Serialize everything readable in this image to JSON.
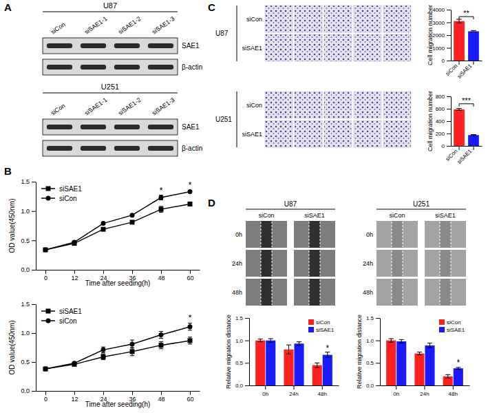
{
  "figure": {
    "panel_labels": [
      "A",
      "B",
      "C",
      "D"
    ],
    "blots": [
      {
        "cell_line": "U87",
        "lanes": [
          "siCon",
          "siSAE1-1",
          "siSAE1-2",
          "siSAE1-3"
        ],
        "bands": [
          "SAE1",
          "β-actin"
        ]
      },
      {
        "cell_line": "U251",
        "lanes": [
          "siCon",
          "siSAE1-1",
          "siSAE1-2",
          "siSAE1-3"
        ],
        "bands": [
          "SAE1",
          "β-actin"
        ]
      }
    ],
    "transwell": [
      {
        "cell_line": "U87",
        "rows": [
          "siCon",
          "siSAE1"
        ]
      },
      {
        "cell_line": "U251",
        "rows": [
          "siCon",
          "siSAE1"
        ]
      }
    ],
    "wound": [
      {
        "cell_line": "U87",
        "columns": [
          "siCon",
          "siSAE1"
        ],
        "rows": [
          "0h",
          "24h",
          "48h"
        ]
      },
      {
        "cell_line": "U251",
        "columns": [
          "siCon",
          "siSAE1"
        ],
        "rows": [
          "0h",
          "24h",
          "48h"
        ]
      }
    ]
  },
  "chart_data": [
    {
      "type": "line",
      "x": [
        0,
        12,
        24,
        36,
        48,
        60
      ],
      "xlim": [
        -4,
        64
      ],
      "xticks": [
        0,
        12,
        24,
        36,
        48,
        60
      ],
      "ylim": [
        0,
        1.5
      ],
      "yticks": [
        {
          "value": 0,
          "label": "0.0"
        },
        0.5,
        {
          "value": 1,
          "label": "1.0"
        },
        1.5
      ],
      "xlabel": "Time after seeding(h)",
      "ylabel": "OD value(450nm)",
      "legend": "top-left",
      "series": [
        {
          "name": "siSAE1",
          "color": "#000000",
          "marker": "square",
          "values": [
            0.34,
            0.45,
            0.69,
            0.81,
            1.03,
            1.12
          ],
          "errors": [
            0.01,
            0.02,
            0.02,
            0.02,
            0.05,
            0.02
          ]
        },
        {
          "name": "siCon",
          "color": "#000000",
          "marker": "circle",
          "values": [
            0.34,
            0.47,
            0.79,
            0.93,
            1.23,
            1.33
          ],
          "errors": [
            0.01,
            0.02,
            0.02,
            0.02,
            0.04,
            0.02
          ]
        }
      ],
      "annotations": [
        {
          "text": "*",
          "x": 48,
          "y": 1.3
        },
        {
          "text": "*",
          "x": 60,
          "y": 1.4
        }
      ]
    },
    {
      "type": "line",
      "x": [
        0,
        12,
        24,
        36,
        48,
        60
      ],
      "xlim": [
        -4,
        64
      ],
      "xticks": [
        0,
        12,
        24,
        36,
        48,
        60
      ],
      "ylim": [
        0,
        1.5
      ],
      "yticks": [
        {
          "value": 0,
          "label": "0.0"
        },
        0.5,
        {
          "value": 1,
          "label": "1.0"
        },
        1.5
      ],
      "xlabel": "Time after seeding(h)",
      "ylabel": "OD value(450nm)",
      "legend": "top-left",
      "series": [
        {
          "name": "siSAE1",
          "color": "#000000",
          "marker": "square",
          "values": [
            0.38,
            0.46,
            0.59,
            0.68,
            0.79,
            0.87
          ],
          "errors": [
            0.01,
            0.02,
            0.05,
            0.07,
            0.06,
            0.06
          ]
        },
        {
          "name": "siCon",
          "color": "#000000",
          "marker": "circle",
          "values": [
            0.38,
            0.48,
            0.71,
            0.81,
            0.97,
            1.11
          ],
          "errors": [
            0.01,
            0.02,
            0.05,
            0.07,
            0.06,
            0.06
          ]
        }
      ],
      "annotations": [
        {
          "text": "*",
          "x": 60,
          "y": 1.21
        }
      ]
    },
    {
      "type": "bar",
      "categories": [
        "siCon",
        "siSAE1"
      ],
      "values": [
        3100,
        2300
      ],
      "errors": [
        150,
        60
      ],
      "colors": [
        "#ff2020",
        "#1a1aff"
      ],
      "ylim": [
        0,
        4000
      ],
      "yticks": [
        0,
        1000,
        2000,
        3000,
        4000
      ],
      "ylabel": "Cell migration number",
      "annotations": [
        {
          "text": "**",
          "x": [
            "siCon",
            "siSAE1"
          ],
          "y": 3450
        }
      ]
    },
    {
      "type": "bar",
      "categories": [
        "siCon",
        "siSAE1"
      ],
      "values": [
        590,
        175
      ],
      "errors": [
        15,
        8
      ],
      "colors": [
        "#ff2020",
        "#1a1aff"
      ],
      "ylim": [
        0,
        800
      ],
      "yticks": [
        0,
        200,
        400,
        600,
        800
      ],
      "ylabel": "Cell migration number",
      "annotations": [
        {
          "text": "***",
          "x": [
            "siCon",
            "siSAE1"
          ],
          "y": 680
        }
      ]
    },
    {
      "type": "bar",
      "categories": [
        "0h",
        "24h",
        "48h"
      ],
      "legend": "top-right",
      "series": [
        {
          "name": "siCon",
          "color": "#ff2020",
          "values": [
            1.0,
            0.8,
            0.45
          ],
          "errors": [
            0.03,
            0.1,
            0.05
          ]
        },
        {
          "name": "siSAE1",
          "color": "#1a1aff",
          "values": [
            1.0,
            0.93,
            0.68
          ],
          "errors": [
            0.04,
            0.04,
            0.06
          ]
        }
      ],
      "ylim": [
        0,
        1.5
      ],
      "yticks": [
        {
          "value": 0,
          "label": "0.0"
        },
        0.5,
        {
          "value": 1,
          "label": "1.0"
        },
        1.5
      ],
      "ylabel": "Relative migration distance",
      "annotations": [
        {
          "text": "*",
          "x": "48h",
          "series": "siSAE1",
          "y": 0.77
        }
      ]
    },
    {
      "type": "bar",
      "categories": [
        "0h",
        "24h",
        "48h"
      ],
      "legend": "top-right",
      "series": [
        {
          "name": "siCon",
          "color": "#ff2020",
          "values": [
            1.0,
            0.71,
            0.2
          ],
          "errors": [
            0.04,
            0.03,
            0.04
          ]
        },
        {
          "name": "siSAE1",
          "color": "#1a1aff",
          "values": [
            0.98,
            0.89,
            0.38
          ],
          "errors": [
            0.04,
            0.05,
            0.02
          ]
        }
      ],
      "ylim": [
        0,
        1.5
      ],
      "yticks": [
        {
          "value": 0,
          "label": "0.0"
        },
        0.5,
        {
          "value": 1,
          "label": "1.0"
        },
        1.5
      ],
      "ylabel": "Relative migration distance",
      "annotations": [
        {
          "text": "*",
          "x": "48h",
          "series": "siSAE1",
          "y": 0.44
        }
      ]
    }
  ]
}
